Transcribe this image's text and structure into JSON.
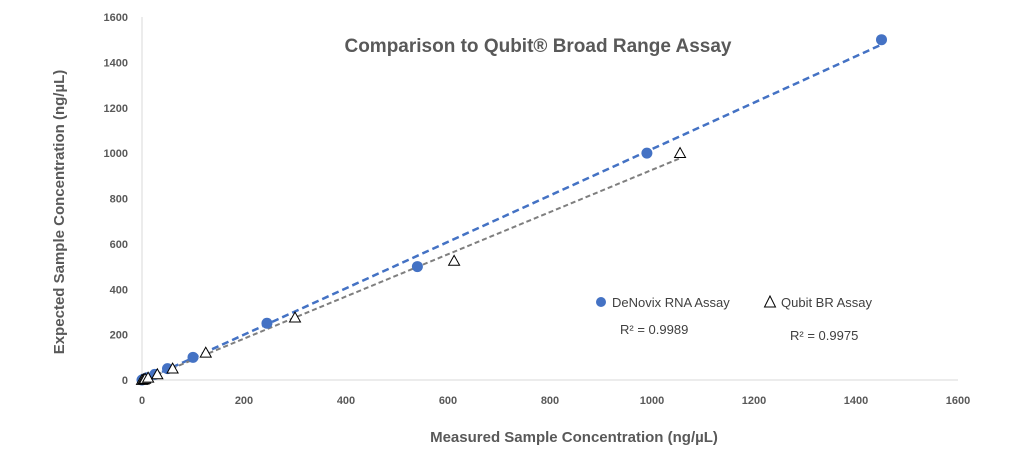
{
  "chart_data": {
    "type": "scatter",
    "title": "Comparison to Qubit® Broad Range Assay",
    "xlabel": "Measured Sample Concentration (ng/µL)",
    "ylabel": "Expected Sample Concentration (ng/µL)",
    "xlim": [
      0,
      1600
    ],
    "ylim": [
      0,
      1600
    ],
    "xticks": [
      0,
      200,
      400,
      600,
      800,
      1000,
      1200,
      1400,
      1600
    ],
    "yticks": [
      0,
      200,
      400,
      600,
      800,
      1000,
      1200,
      1400,
      1600
    ],
    "grid": false,
    "legend": "right-middle",
    "series": [
      {
        "name": "DeNovix RNA Assay",
        "marker": "filled-circle",
        "color": "#4472C4",
        "trendline": true,
        "r2_label": "R² = 0.9989",
        "x": [
          0,
          2,
          5,
          10,
          25,
          50,
          100,
          245,
          540,
          990,
          1450
        ],
        "y": [
          0,
          2,
          5,
          10,
          25,
          50,
          100,
          250,
          500,
          1000,
          1500
        ]
      },
      {
        "name": "Qubit BR Assay",
        "marker": "open-triangle",
        "color": "#000000",
        "trendline": true,
        "r2_label": "R² = 0.9975",
        "x": [
          0,
          3,
          6,
          12,
          30,
          60,
          125,
          300,
          612,
          1055
        ],
        "y": [
          0,
          2,
          5,
          10,
          25,
          50,
          120,
          275,
          525,
          1000
        ]
      }
    ]
  }
}
